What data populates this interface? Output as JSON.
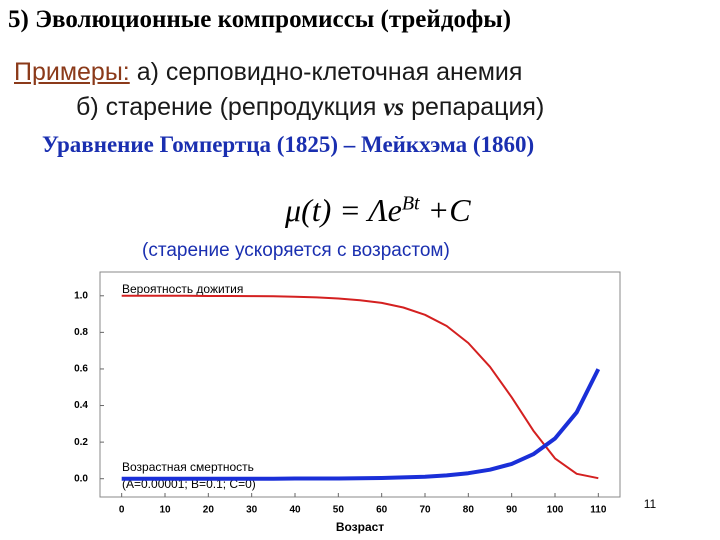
{
  "slide": {
    "heading": "5) Эволюционные компромиссы (трейдофы)",
    "examples_label": "Примеры:",
    "example_a": "а) серповидно-клеточная анемия",
    "example_b_start": "б) старение (репродукция ",
    "example_b_vs": "vs",
    "example_b_end": " репарация)",
    "equation_title": "Уравнение Гомпертца (1825) – Мейкхэма (1860)",
    "formula_main": "μ(t) = Λe",
    "formula_exp": "Bt",
    "formula_tail": "+C",
    "note": "(старение ускоряется с возрастом)",
    "page_number": "11"
  },
  "chart_data": {
    "type": "line",
    "x_label": "Возраст",
    "annotations": [
      "Вероятность дожития",
      "Возрастная смертность",
      "(A=0.00001; B=0.1; C=0)"
    ],
    "x": [
      0,
      5,
      10,
      15,
      20,
      25,
      30,
      35,
      40,
      45,
      50,
      55,
      60,
      65,
      70,
      75,
      80,
      85,
      90,
      95,
      100,
      105,
      110
    ],
    "series": [
      {
        "name": "Вероятность дожития",
        "color": "#d42020",
        "values": [
          1,
          1,
          1,
          1,
          0.999,
          0.999,
          0.998,
          0.997,
          0.995,
          0.991,
          0.985,
          0.976,
          0.961,
          0.936,
          0.896,
          0.835,
          0.742,
          0.612,
          0.445,
          0.263,
          0.111,
          0.027,
          0.003
        ]
      },
      {
        "name": "Возрастная смертность",
        "color": "#1a2fd8",
        "values": [
          0,
          0,
          0,
          0,
          0,
          0,
          0,
          0,
          0.001,
          0.001,
          0.001,
          0.002,
          0.004,
          0.007,
          0.011,
          0.018,
          0.03,
          0.049,
          0.081,
          0.134,
          0.22,
          0.363,
          0.599
        ]
      }
    ],
    "xlim": [
      -5,
      115
    ],
    "ylim": [
      -0.1,
      1.13
    ],
    "xticks": [
      0,
      10,
      20,
      30,
      40,
      50,
      60,
      70,
      80,
      90,
      100,
      110
    ],
    "yticks": [
      {
        "value": 0,
        "label": "0.0"
      },
      0.2,
      0.4,
      0.6,
      0.8,
      {
        "value": 1,
        "label": "1.0"
      }
    ]
  }
}
